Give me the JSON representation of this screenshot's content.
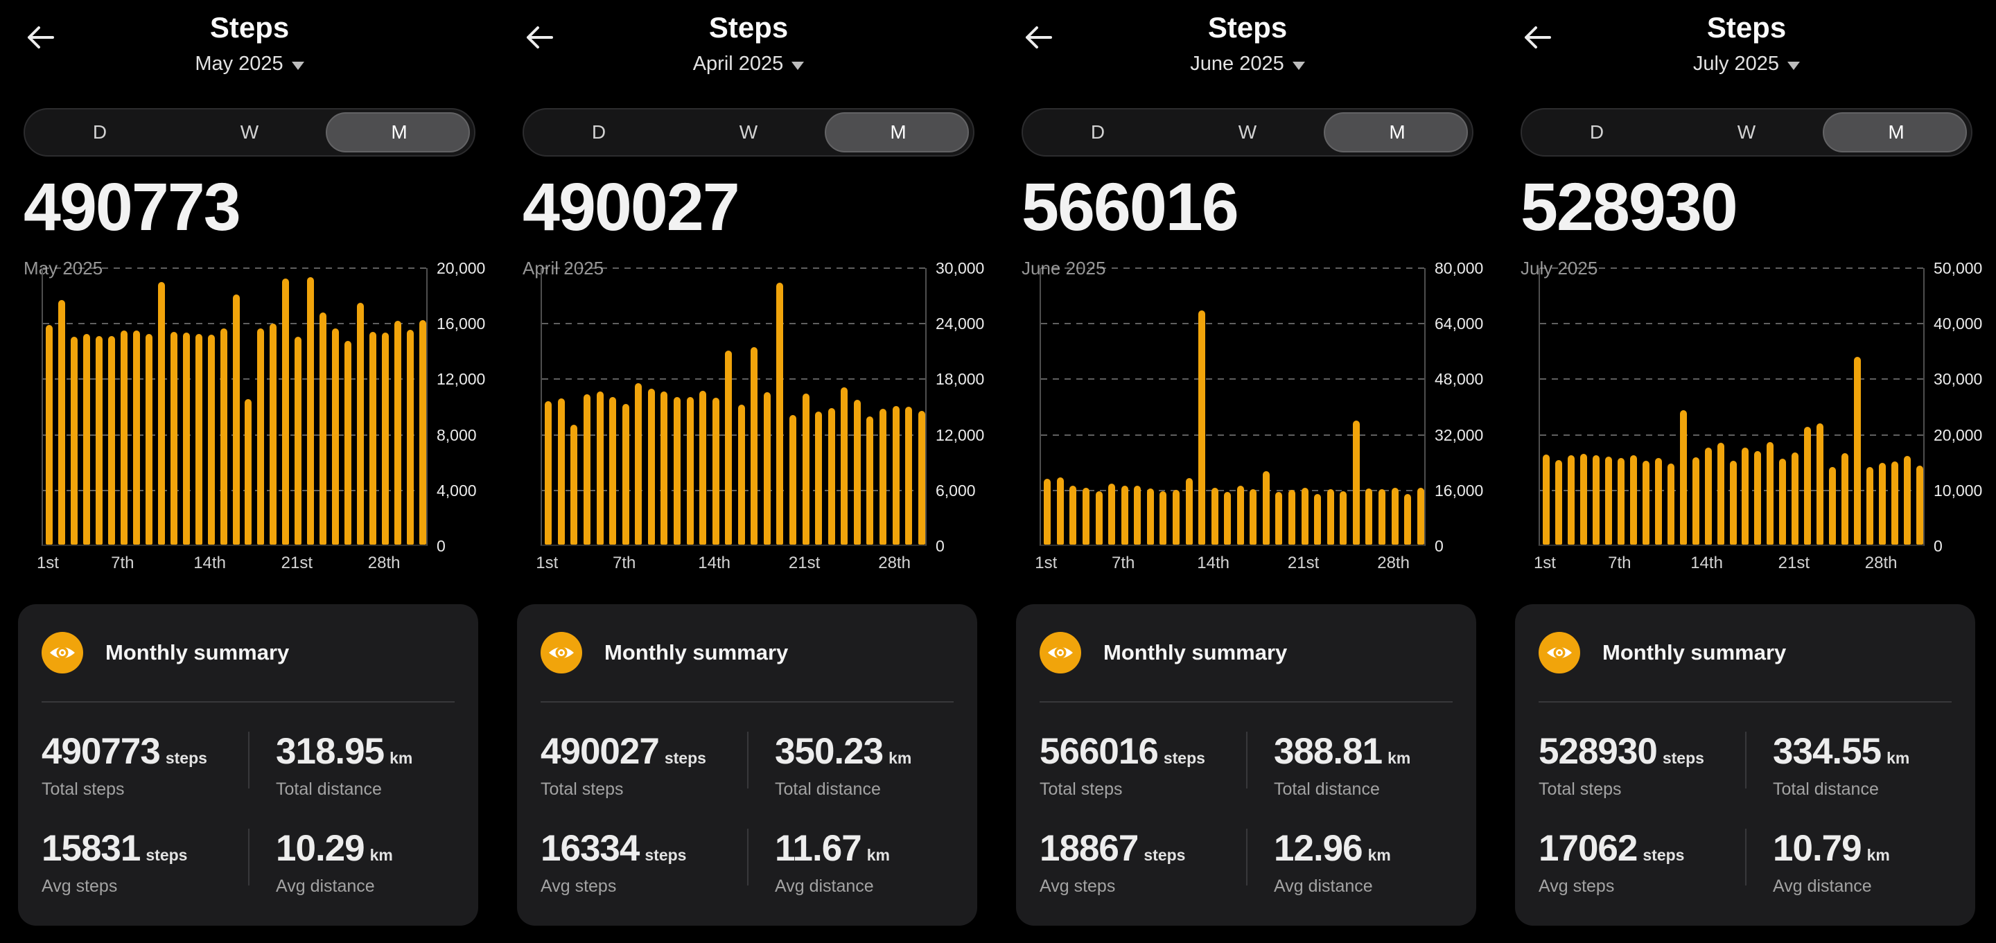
{
  "colors": {
    "background": "#000000",
    "card": "#1C1C1E",
    "accent": "#F1A40B"
  },
  "icons": {
    "back": "arrow-left",
    "month_dropdown": "caret-down",
    "summary": "eye"
  },
  "panels": [
    {
      "title": "Steps",
      "month_selector": "May 2025",
      "tabs": [
        "D",
        "W",
        "M"
      ],
      "selected_tab": "M",
      "total_steps": "490773",
      "period_label": "May 2025",
      "summary": {
        "title": "Monthly summary",
        "stats": [
          {
            "value": "490773",
            "unit": "steps",
            "label": "Total steps"
          },
          {
            "value": "318.95",
            "unit": "km",
            "label": "Total distance"
          },
          {
            "value": "15831",
            "unit": "steps",
            "label": "Avg steps"
          },
          {
            "value": "10.29",
            "unit": "km",
            "label": "Avg distance"
          }
        ]
      }
    },
    {
      "title": "Steps",
      "month_selector": "April 2025",
      "tabs": [
        "D",
        "W",
        "M"
      ],
      "selected_tab": "M",
      "total_steps": "490027",
      "period_label": "April 2025",
      "summary": {
        "title": "Monthly summary",
        "stats": [
          {
            "value": "490027",
            "unit": "steps",
            "label": "Total steps"
          },
          {
            "value": "350.23",
            "unit": "km",
            "label": "Total distance"
          },
          {
            "value": "16334",
            "unit": "steps",
            "label": "Avg steps"
          },
          {
            "value": "11.67",
            "unit": "km",
            "label": "Avg distance"
          }
        ]
      }
    },
    {
      "title": "Steps",
      "month_selector": "June 2025",
      "tabs": [
        "D",
        "W",
        "M"
      ],
      "selected_tab": "M",
      "total_steps": "566016",
      "period_label": "June 2025",
      "summary": {
        "title": "Monthly summary",
        "stats": [
          {
            "value": "566016",
            "unit": "steps",
            "label": "Total steps"
          },
          {
            "value": "388.81",
            "unit": "km",
            "label": "Total distance"
          },
          {
            "value": "18867",
            "unit": "steps",
            "label": "Avg steps"
          },
          {
            "value": "12.96",
            "unit": "km",
            "label": "Avg distance"
          }
        ]
      }
    },
    {
      "title": "Steps",
      "month_selector": "July 2025",
      "tabs": [
        "D",
        "W",
        "M"
      ],
      "selected_tab": "M",
      "total_steps": "528930",
      "period_label": "July 2025",
      "summary": {
        "title": "Monthly summary",
        "stats": [
          {
            "value": "528930",
            "unit": "steps",
            "label": "Total steps"
          },
          {
            "value": "334.55",
            "unit": "km",
            "label": "Total distance"
          },
          {
            "value": "17062",
            "unit": "steps",
            "label": "Avg steps"
          },
          {
            "value": "10.79",
            "unit": "km",
            "label": "Avg distance"
          }
        ]
      }
    }
  ],
  "chart_data": [
    {
      "type": "bar",
      "title": "May 2025 daily steps",
      "categories": [
        1,
        2,
        3,
        4,
        5,
        6,
        7,
        8,
        9,
        10,
        11,
        12,
        13,
        14,
        15,
        16,
        17,
        18,
        19,
        20,
        21,
        22,
        23,
        24,
        25,
        26,
        27,
        28,
        29,
        30,
        31
      ],
      "values": [
        15830,
        17620,
        14970,
        15140,
        15020,
        15000,
        15430,
        15420,
        15140,
        18910,
        15300,
        15270,
        15140,
        15100,
        15550,
        17990,
        10473,
        15580,
        15910,
        19140,
        14940,
        19230,
        16710,
        15550,
        14640,
        17420,
        15300,
        15270,
        16130,
        15470,
        16180
      ],
      "total": 490773,
      "ylim": [
        0,
        20000
      ],
      "yticks": [
        0,
        4000,
        8000,
        12000,
        16000,
        20000
      ],
      "ytick_labels": [
        "0",
        "4,000",
        "8,000",
        "12,000",
        "16,000",
        "20,000"
      ],
      "xtick_days": [
        1,
        7,
        14,
        21,
        28
      ],
      "xtick_labels": [
        "1st",
        "7th",
        "14th",
        "21st",
        "28th"
      ],
      "bar_color": "#F1A40B",
      "grid": "dashed-horizontal",
      "y_axis_position": "right",
      "legend": false
    },
    {
      "type": "bar",
      "title": "April 2025 daily steps",
      "categories": [
        1,
        2,
        3,
        4,
        5,
        6,
        7,
        8,
        9,
        10,
        11,
        12,
        13,
        14,
        15,
        16,
        17,
        18,
        19,
        20,
        21,
        22,
        23,
        24,
        25,
        26,
        27,
        28,
        29,
        30
      ],
      "values": [
        15460,
        15760,
        12920,
        16250,
        16520,
        15900,
        15160,
        17440,
        16820,
        16570,
        15950,
        15900,
        16620,
        15830,
        20920,
        15080,
        21350,
        16450,
        28267,
        13960,
        16320,
        14390,
        14760,
        17000,
        15630,
        13840,
        14630,
        14960,
        14910,
        14460
      ],
      "total": 490027,
      "ylim": [
        0,
        30000
      ],
      "yticks": [
        0,
        6000,
        12000,
        18000,
        24000,
        30000
      ],
      "ytick_labels": [
        "0",
        "6,000",
        "12,000",
        "18,000",
        "24,000",
        "30,000"
      ],
      "xtick_days": [
        1,
        7,
        14,
        21,
        28
      ],
      "xtick_labels": [
        "1st",
        "7th",
        "14th",
        "21st",
        "28th"
      ],
      "bar_color": "#F1A40B",
      "grid": "dashed-horizontal",
      "y_axis_position": "right",
      "legend": false
    },
    {
      "type": "bar",
      "title": "June 2025 daily steps",
      "categories": [
        1,
        2,
        3,
        4,
        5,
        6,
        7,
        8,
        9,
        10,
        11,
        12,
        13,
        14,
        15,
        16,
        17,
        18,
        19,
        20,
        21,
        22,
        23,
        24,
        25,
        26,
        27,
        28,
        29,
        30
      ],
      "values": [
        18870,
        19270,
        16880,
        16290,
        15420,
        17610,
        16880,
        16950,
        16090,
        15290,
        15760,
        19070,
        67436,
        16420,
        15090,
        16880,
        15950,
        21190,
        15220,
        15760,
        16420,
        14560,
        15950,
        15420,
        35770,
        16220,
        15950,
        16420,
        14630,
        16350
      ],
      "total": 566016,
      "ylim": [
        0,
        80000
      ],
      "yticks": [
        0,
        16000,
        32000,
        48000,
        64000,
        80000
      ],
      "ytick_labels": [
        "0",
        "16,000",
        "32,000",
        "48,000",
        "64,000",
        "80,000"
      ],
      "xtick_days": [
        1,
        7,
        14,
        21,
        28
      ],
      "xtick_labels": [
        "1st",
        "7th",
        "14th",
        "21st",
        "28th"
      ],
      "bar_color": "#F1A40B",
      "grid": "dashed-horizontal",
      "y_axis_position": "right",
      "legend": false
    },
    {
      "type": "bar",
      "title": "July 2025 daily steps",
      "categories": [
        1,
        2,
        3,
        4,
        5,
        6,
        7,
        8,
        9,
        10,
        11,
        12,
        13,
        14,
        15,
        16,
        17,
        18,
        19,
        20,
        21,
        22,
        23,
        24,
        25,
        26,
        27,
        28,
        29,
        30,
        31
      ],
      "values": [
        16200,
        15240,
        16070,
        16280,
        16070,
        15780,
        15530,
        16070,
        15030,
        15530,
        14620,
        24150,
        15660,
        17400,
        18350,
        15120,
        17400,
        16820,
        18480,
        15450,
        16610,
        21250,
        21870,
        13920,
        16490,
        33770,
        14000,
        14700,
        14910,
        15950,
        14210
      ],
      "total": 528930,
      "ylim": [
        0,
        50000
      ],
      "yticks": [
        0,
        10000,
        20000,
        30000,
        40000,
        50000
      ],
      "ytick_labels": [
        "0",
        "10,000",
        "20,000",
        "30,000",
        "40,000",
        "50,000"
      ],
      "xtick_days": [
        1,
        7,
        14,
        21,
        28
      ],
      "xtick_labels": [
        "1st",
        "7th",
        "14th",
        "21st",
        "28th"
      ],
      "bar_color": "#F1A40B",
      "grid": "dashed-horizontal",
      "y_axis_position": "right",
      "legend": false
    }
  ]
}
